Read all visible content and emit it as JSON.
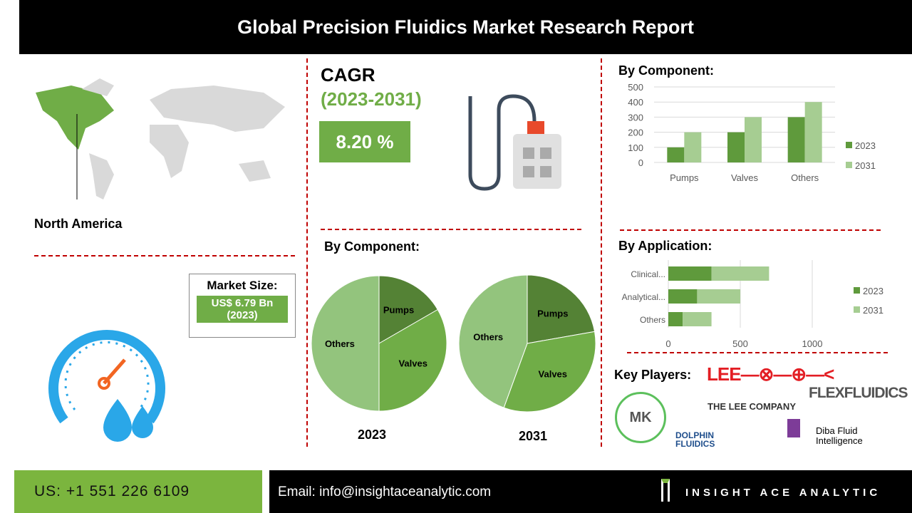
{
  "title": "Global Precision Fluidics Market  Research Report",
  "region": {
    "label": "North America",
    "highlight_color": "#70ad47"
  },
  "cagr": {
    "label": "CAGR",
    "period": "(2023-2031)",
    "value": "8.20 %"
  },
  "market_size": {
    "label": "Market Size:",
    "value": "US$ 6.79 Bn",
    "year": "(2023)"
  },
  "colors": {
    "dark_green": "#5f9a3c",
    "light_green": "#a6cd92",
    "accent_red": "#c00000",
    "cagr_green": "#70ad47"
  },
  "chart_data": [
    {
      "type": "bar",
      "title": "By Component:",
      "categories": [
        "Pumps",
        "Valves",
        "Others"
      ],
      "series": [
        {
          "name": "2023",
          "values": [
            100,
            200,
            300
          ]
        },
        {
          "name": "2031",
          "values": [
            200,
            300,
            400
          ]
        }
      ],
      "ylim": [
        0,
        500
      ],
      "yticks": [
        "0",
        "100",
        "200",
        "300",
        "400",
        "500"
      ],
      "grid": true,
      "legend": "right"
    },
    {
      "type": "pie",
      "title": "By Component:",
      "charts": [
        {
          "label": "2023",
          "slices": [
            {
              "name": "Pumps",
              "value": 100
            },
            {
              "name": "Valves",
              "value": 200
            },
            {
              "name": "Others",
              "value": 300
            }
          ]
        },
        {
          "label": "2031",
          "slices": [
            {
              "name": "Pumps",
              "value": 200
            },
            {
              "name": "Valves",
              "value": 300
            },
            {
              "name": "Others",
              "value": 400
            }
          ]
        }
      ]
    },
    {
      "type": "bar",
      "orientation": "horizontal",
      "stacked": true,
      "title": "By Application:",
      "categories": [
        "Clinical...",
        "Analytical...",
        "Others"
      ],
      "series": [
        {
          "name": "2023",
          "values": [
            300,
            200,
            100
          ]
        },
        {
          "name": "2031",
          "values": [
            400,
            300,
            200
          ]
        }
      ],
      "xlim": [
        0,
        1300
      ],
      "xticks": [
        "0",
        "500",
        "1000"
      ],
      "grid": true,
      "legend": "right"
    }
  ],
  "key_players": {
    "label": "Key Players:",
    "logos": [
      "MK",
      "THE LEE COMPANY",
      "FLEXFLUIDICS",
      "DOLPHIN FLUIDICS",
      "Diba Fluid Intelligence"
    ]
  },
  "footer": {
    "phone": "US: +1 551 226 6109",
    "email": "Email: info@insightaceanalytic.com",
    "brand": "INSIGHT ACE ANALYTIC"
  }
}
